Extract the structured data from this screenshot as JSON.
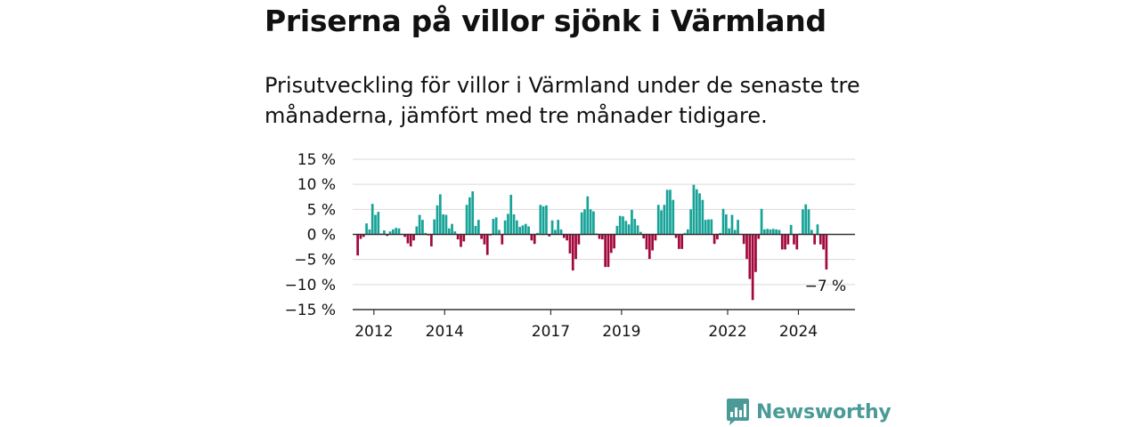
{
  "title": "Priserna på villor sjönk i Värmland",
  "subtitle": "Prisutveckling för villor i Värmland under de senaste tre månaderna, jämfört med tre månader tidigare.",
  "logo": {
    "text": "Newsworthy",
    "icon": "newsworthy-chart-icon"
  },
  "colors": {
    "positive": "#17a398",
    "negative": "#a3083b",
    "grid": "#d9d9d9",
    "axis": "#333333",
    "brand": "#4a9b97"
  },
  "chart_data": {
    "type": "bar",
    "title": "Priserna på villor sjönk i Värmland",
    "xlabel": "",
    "ylabel": "",
    "y_unit": "%",
    "ylim": [
      -15,
      15
    ],
    "y_ticks": [
      15,
      10,
      5,
      0,
      -5,
      -10,
      -15
    ],
    "y_tick_labels": [
      "15 %",
      "10 %",
      "5 %",
      "0 %",
      "−5 %",
      "−10 %",
      "−15 %"
    ],
    "x_ticks": [
      {
        "label": "2012",
        "year": 2012
      },
      {
        "label": "2014",
        "year": 2014
      },
      {
        "label": "2017",
        "year": 2017
      },
      {
        "label": "2019",
        "year": 2019
      },
      {
        "label": "2022",
        "year": 2022
      },
      {
        "label": "2024",
        "year": 2024
      }
    ],
    "x_range": [
      2011.4,
      2025.6
    ],
    "start": "2011-07",
    "frequency": "monthly",
    "grid": true,
    "last_value_label": "−7 %",
    "values": [
      -4.2,
      -0.9,
      -0.5,
      2.2,
      1.0,
      6.1,
      3.9,
      4.5,
      0.2,
      0.8,
      -0.3,
      0.6,
      1.0,
      1.3,
      1.2,
      0.1,
      -0.5,
      -1.8,
      -2.4,
      -1.2,
      1.6,
      3.9,
      2.9,
      0.3,
      -0.2,
      -2.4,
      3.0,
      5.8,
      8.0,
      4.0,
      3.9,
      1.2,
      2.1,
      0.6,
      -1.0,
      -2.5,
      -1.4,
      5.9,
      7.4,
      8.6,
      1.7,
      2.9,
      -0.9,
      -2.0,
      -4.1,
      -0.2,
      3.1,
      3.4,
      0.9,
      -2.0,
      2.8,
      4.1,
      7.9,
      4.0,
      2.8,
      1.5,
      1.8,
      2.1,
      1.6,
      -1.2,
      -1.9,
      0.3,
      5.9,
      5.6,
      5.8,
      -0.4,
      2.8,
      0.9,
      2.9,
      1.0,
      -0.7,
      -1.2,
      -3.8,
      -7.2,
      -4.9,
      -2.0,
      4.4,
      5.0,
      7.6,
      5.0,
      4.6,
      0.2,
      -0.9,
      -1.0,
      -6.5,
      -6.5,
      -3.7,
      -2.8,
      1.7,
      3.7,
      3.6,
      2.7,
      2.0,
      4.9,
      3.1,
      1.8,
      0.5,
      -0.8,
      -3.0,
      -4.9,
      -3.2,
      -1.2,
      5.9,
      4.8,
      5.9,
      8.9,
      8.9,
      6.9,
      -0.7,
      -2.9,
      -2.9,
      0.3,
      1.0,
      5.0,
      9.9,
      9.0,
      8.2,
      6.9,
      2.9,
      3.0,
      3.0,
      -1.9,
      -1.0,
      0.3,
      5.1,
      4.0,
      1.2,
      3.9,
      0.9,
      2.9,
      0.1,
      -1.9,
      -4.9,
      -8.9,
      -13.1,
      -7.5,
      -0.9,
      5.1,
      1.0,
      1.1,
      1.0,
      1.1,
      1.0,
      0.9,
      -3.0,
      -3.0,
      -2.0,
      1.9,
      -2.0,
      -3.0,
      0.2,
      5.0,
      6.0,
      5.0,
      0.9,
      -2.0,
      2.0,
      -2.0,
      -3.0,
      -7.0
    ]
  }
}
